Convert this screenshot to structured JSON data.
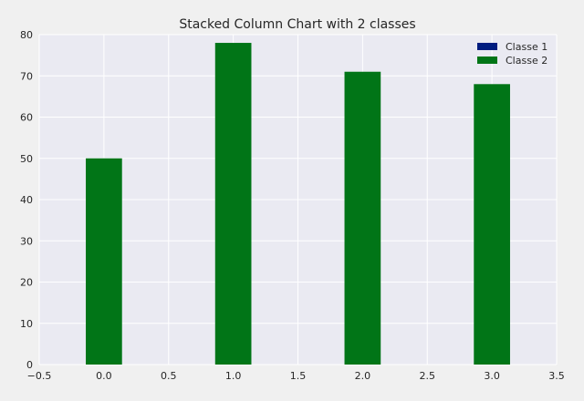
{
  "chart_data": {
    "type": "bar",
    "stacked": true,
    "title": "Stacked Column Chart with 2 classes",
    "xlabel": "",
    "ylabel": "",
    "x": [
      0,
      1,
      2,
      3
    ],
    "series": [
      {
        "name": "Classe 1",
        "values": [
          0,
          0,
          0,
          0
        ],
        "color": "#001c7f"
      },
      {
        "name": "Classe 2",
        "values": [
          50,
          78,
          71,
          68
        ],
        "color": "#017517"
      }
    ],
    "xlim": [
      -0.5,
      3.5
    ],
    "ylim": [
      0,
      80
    ],
    "xticks": [
      -0.5,
      0.0,
      0.5,
      1.0,
      1.5,
      2.0,
      2.5,
      3.0,
      3.5
    ],
    "xtick_labels": [
      "−0.5",
      "0.0",
      "0.5",
      "1.0",
      "1.5",
      "2.0",
      "2.5",
      "3.0",
      "3.5"
    ],
    "yticks": [
      0,
      10,
      20,
      30,
      40,
      50,
      60,
      70,
      80
    ],
    "ytick_labels": [
      "0",
      "10",
      "20",
      "30",
      "40",
      "50",
      "60",
      "70",
      "80"
    ],
    "bar_width": 0.28,
    "grid": true,
    "legend_position": "top-right",
    "background_color": "#eaeaf2",
    "grid_color": "#ffffff"
  }
}
